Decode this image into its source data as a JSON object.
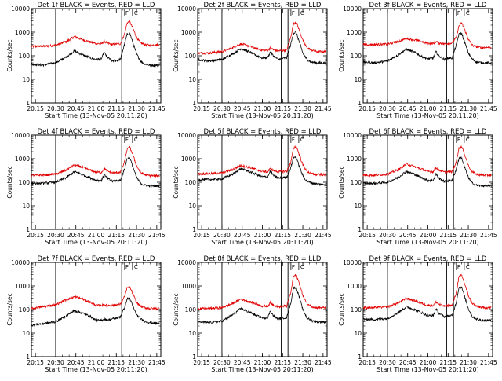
{
  "chart_data": {
    "type": "line",
    "title_template": "Det {det}f  BLACK = Events, RED = LLD",
    "black_label": "BLACK = Events",
    "red_label": "RED = LLD",
    "xlabel": "Start Time (13-Nov-05 20:11:20)",
    "ylabel": "Counts/sec",
    "y_scale": "log",
    "ylim": [
      1,
      10000
    ],
    "xlim": [
      "20:12",
      "21:48"
    ],
    "x_ticks": [
      "20:15",
      "20:30",
      "20:45",
      "21:00",
      "21:15",
      "21:30",
      "21:45"
    ],
    "y_ticks": [
      "1",
      "10",
      "100",
      "1000",
      "10000"
    ],
    "marker_lines": [
      "20:30",
      "21:14",
      "21:19"
    ],
    "markers_top": [
      "F",
      "C"
    ],
    "series_colors": {
      "black": "#000000",
      "red": "#e00000"
    },
    "x_times": [
      "20:12",
      "20:20",
      "20:30",
      "20:38",
      "20:44",
      "20:50",
      "20:56",
      "21:00",
      "21:04",
      "21:06",
      "21:08",
      "21:12",
      "21:16",
      "21:18",
      "21:21",
      "21:23",
      "21:25",
      "21:27",
      "21:30",
      "21:33",
      "21:36",
      "21:40",
      "21:47"
    ],
    "panels": [
      {
        "det": "1",
        "red": [
          250,
          250,
          280,
          400,
          650,
          480,
          380,
          330,
          320,
          420,
          350,
          300,
          320,
          320,
          800,
          2500,
          2800,
          1600,
          600,
          350,
          300,
          280,
          300
        ],
        "black": [
          45,
          40,
          50,
          90,
          160,
          110,
          80,
          70,
          75,
          140,
          90,
          60,
          65,
          70,
          300,
          800,
          900,
          400,
          120,
          60,
          45,
          40,
          40
        ]
      },
      {
        "det": "2",
        "red": [
          130,
          130,
          150,
          220,
          320,
          260,
          200,
          170,
          170,
          220,
          180,
          160,
          170,
          170,
          600,
          2200,
          2800,
          1400,
          450,
          220,
          180,
          150,
          150
        ],
        "black": [
          70,
          60,
          70,
          120,
          200,
          150,
          100,
          80,
          85,
          150,
          100,
          70,
          80,
          80,
          300,
          900,
          1000,
          450,
          130,
          70,
          55,
          50,
          50
        ]
      },
      {
        "det": "3",
        "red": [
          300,
          300,
          310,
          400,
          550,
          470,
          390,
          340,
          330,
          400,
          350,
          320,
          340,
          340,
          600,
          1800,
          2500,
          1400,
          500,
          280,
          240,
          220,
          230
        ],
        "black": [
          55,
          50,
          60,
          110,
          190,
          140,
          90,
          75,
          80,
          150,
          100,
          70,
          80,
          80,
          280,
          800,
          900,
          420,
          130,
          70,
          55,
          50,
          50
        ]
      },
      {
        "det": "4",
        "red": [
          200,
          200,
          220,
          330,
          550,
          430,
          320,
          270,
          260,
          400,
          300,
          250,
          260,
          260,
          700,
          2500,
          3000,
          1600,
          500,
          260,
          210,
          190,
          190
        ],
        "black": [
          90,
          90,
          100,
          160,
          280,
          210,
          150,
          120,
          120,
          220,
          150,
          110,
          120,
          120,
          350,
          1000,
          1100,
          500,
          160,
          90,
          75,
          70,
          70
        ]
      },
      {
        "det": "5",
        "red": [
          230,
          230,
          250,
          350,
          520,
          430,
          340,
          290,
          280,
          380,
          320,
          280,
          290,
          290,
          650,
          2600,
          3500,
          1700,
          550,
          290,
          240,
          210,
          210
        ],
        "black": [
          130,
          130,
          140,
          220,
          380,
          290,
          210,
          170,
          170,
          300,
          200,
          150,
          160,
          160,
          400,
          1100,
          1200,
          550,
          190,
          110,
          95,
          85,
          80
        ]
      },
      {
        "det": "6",
        "red": [
          200,
          200,
          220,
          340,
          600,
          460,
          350,
          290,
          280,
          420,
          330,
          270,
          280,
          280,
          700,
          2800,
          3300,
          1700,
          520,
          270,
          220,
          200,
          200
        ],
        "black": [
          90,
          90,
          100,
          160,
          290,
          220,
          150,
          120,
          120,
          230,
          150,
          110,
          120,
          120,
          350,
          1000,
          1100,
          480,
          160,
          90,
          75,
          70,
          70
        ]
      },
      {
        "det": "7",
        "red": [
          110,
          130,
          160,
          260,
          350,
          280,
          200,
          150,
          150,
          160,
          150,
          150,
          160,
          170,
          350,
          800,
          900,
          500,
          200,
          140,
          120,
          110,
          110
        ],
        "black": [
          22,
          25,
          30,
          55,
          90,
          70,
          50,
          35,
          35,
          40,
          35,
          40,
          45,
          50,
          120,
          280,
          300,
          150,
          60,
          40,
          32,
          28,
          25
        ]
      },
      {
        "det": "8",
        "red": [
          110,
          110,
          120,
          180,
          280,
          220,
          170,
          140,
          140,
          200,
          160,
          130,
          140,
          140,
          500,
          2500,
          3000,
          1500,
          400,
          180,
          140,
          120,
          120
        ],
        "black": [
          30,
          28,
          32,
          60,
          110,
          80,
          55,
          45,
          45,
          90,
          55,
          40,
          45,
          45,
          180,
          800,
          900,
          400,
          100,
          45,
          35,
          30,
          30
        ]
      },
      {
        "det": "9",
        "red": [
          120,
          120,
          130,
          190,
          300,
          240,
          180,
          150,
          150,
          210,
          170,
          140,
          150,
          150,
          500,
          2400,
          2900,
          1400,
          400,
          180,
          140,
          120,
          120
        ],
        "black": [
          40,
          38,
          42,
          75,
          130,
          100,
          70,
          55,
          55,
          110,
          70,
          50,
          55,
          55,
          200,
          850,
          900,
          400,
          110,
          50,
          40,
          35,
          35
        ]
      }
    ]
  }
}
